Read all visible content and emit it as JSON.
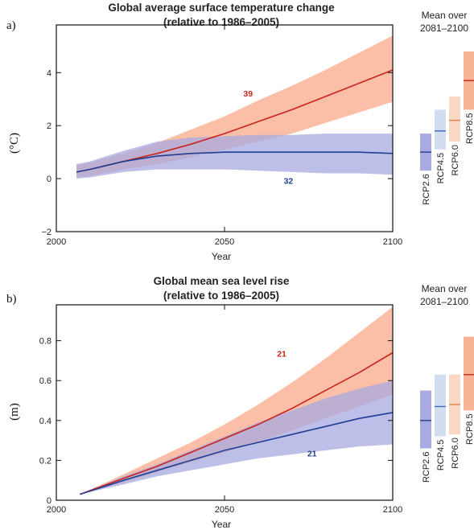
{
  "chart_data": [
    {
      "type": "area",
      "panel_letter": "a)",
      "title": "Global average surface temperature change",
      "subtitle": "(relative to 1986–2005)",
      "xlabel": "Year",
      "ylabel": "(°C)",
      "xlim": [
        2000,
        2100
      ],
      "ylim": [
        -2,
        5.8
      ],
      "xticks": [
        2000,
        2050,
        2100
      ],
      "yticks": [
        -2,
        0,
        2,
        4
      ],
      "series": [
        {
          "color": "#c8241c",
          "band_color": "#f9b497",
          "x": [
            2006,
            2010,
            2020,
            2030,
            2040,
            2050,
            2060,
            2070,
            2080,
            2090,
            2100
          ],
          "mean": [
            0.25,
            0.35,
            0.65,
            0.95,
            1.3,
            1.7,
            2.15,
            2.6,
            3.1,
            3.6,
            4.1
          ],
          "lower": [
            0.05,
            0.1,
            0.35,
            0.55,
            0.8,
            1.1,
            1.4,
            1.7,
            2.1,
            2.5,
            2.9
          ],
          "upper": [
            0.5,
            0.6,
            0.95,
            1.35,
            1.85,
            2.35,
            2.95,
            3.5,
            4.1,
            4.75,
            5.4
          ]
        },
        {
          "color": "#1f3f94",
          "band_color": "#a8aae0",
          "x": [
            2006,
            2010,
            2020,
            2030,
            2040,
            2050,
            2060,
            2070,
            2080,
            2090,
            2100
          ],
          "mean": [
            0.25,
            0.35,
            0.65,
            0.85,
            0.95,
            1.0,
            1.0,
            1.0,
            1.0,
            1.0,
            0.95
          ],
          "lower": [
            0.0,
            0.05,
            0.25,
            0.35,
            0.35,
            0.35,
            0.3,
            0.25,
            0.2,
            0.2,
            0.15
          ],
          "upper": [
            0.55,
            0.65,
            1.05,
            1.4,
            1.55,
            1.6,
            1.65,
            1.65,
            1.7,
            1.7,
            1.7
          ]
        }
      ],
      "annotations": [
        {
          "text": "39",
          "x": 2057,
          "y": 3.1,
          "color": "#c8241c"
        },
        {
          "text": "32",
          "x": 2069,
          "y": -0.2,
          "color": "#1f3f94"
        }
      ],
      "side_panel": {
        "title_lines": [
          "Mean over",
          "2081–2100"
        ],
        "bars": [
          {
            "label": "RCP2.6",
            "low": 0.3,
            "high": 1.7,
            "mean": 1.0,
            "fill": "#a8aae0",
            "line": "#1f3f94"
          },
          {
            "label": "RCP4.5",
            "low": 1.1,
            "high": 2.6,
            "mean": 1.8,
            "fill": "#d2ddf2",
            "line": "#3a6cc0"
          },
          {
            "label": "RCP6.0",
            "low": 1.4,
            "high": 3.1,
            "mean": 2.2,
            "fill": "#fbd8c4",
            "line": "#e27e4e"
          },
          {
            "label": "RCP8.5",
            "low": 2.6,
            "high": 4.8,
            "mean": 3.7,
            "fill": "#f9b497",
            "line": "#c8241c"
          }
        ]
      }
    },
    {
      "type": "area",
      "panel_letter": "b)",
      "title": "Global mean sea level rise",
      "subtitle": "(relative to 1986–2005)",
      "xlabel": "Year",
      "ylabel": "(m)",
      "xlim": [
        2000,
        2100
      ],
      "ylim": [
        0,
        0.98
      ],
      "xticks": [
        2000,
        2050,
        2100
      ],
      "yticks": [
        0,
        0.2,
        0.4,
        0.6,
        0.8
      ],
      "series": [
        {
          "color": "#c8241c",
          "band_color": "#f9b497",
          "x": [
            2007,
            2020,
            2030,
            2040,
            2050,
            2060,
            2070,
            2080,
            2090,
            2100
          ],
          "mean": [
            0.03,
            0.11,
            0.17,
            0.24,
            0.31,
            0.38,
            0.46,
            0.55,
            0.64,
            0.74
          ],
          "lower": [
            0.03,
            0.09,
            0.14,
            0.19,
            0.24,
            0.29,
            0.35,
            0.41,
            0.47,
            0.53
          ],
          "upper": [
            0.03,
            0.13,
            0.21,
            0.29,
            0.38,
            0.48,
            0.59,
            0.71,
            0.84,
            0.97
          ]
        },
        {
          "color": "#1f3f94",
          "band_color": "#a8aae0",
          "x": [
            2007,
            2020,
            2030,
            2040,
            2050,
            2060,
            2070,
            2080,
            2090,
            2100
          ],
          "mean": [
            0.03,
            0.1,
            0.15,
            0.2,
            0.25,
            0.29,
            0.33,
            0.37,
            0.41,
            0.44
          ],
          "lower": [
            0.03,
            0.08,
            0.12,
            0.15,
            0.18,
            0.21,
            0.23,
            0.25,
            0.27,
            0.28
          ],
          "upper": [
            0.03,
            0.12,
            0.18,
            0.25,
            0.32,
            0.39,
            0.45,
            0.51,
            0.56,
            0.6
          ]
        }
      ],
      "annotations": [
        {
          "text": "21",
          "x": 2067,
          "y": 0.72,
          "color": "#c8241c"
        },
        {
          "text": "21",
          "x": 2076,
          "y": 0.22,
          "color": "#1f3f94"
        }
      ],
      "side_panel": {
        "title_lines": [
          "Mean over",
          "2081–2100"
        ],
        "bars": [
          {
            "label": "RCP2.6",
            "low": 0.26,
            "high": 0.55,
            "mean": 0.4,
            "fill": "#a8aae0",
            "line": "#1f3f94"
          },
          {
            "label": "RCP4.5",
            "low": 0.32,
            "high": 0.63,
            "mean": 0.47,
            "fill": "#d2ddf2",
            "line": "#3a6cc0"
          },
          {
            "label": "RCP6.0",
            "low": 0.33,
            "high": 0.63,
            "mean": 0.48,
            "fill": "#fbd8c4",
            "line": "#e27e4e"
          },
          {
            "label": "RCP8.5",
            "low": 0.45,
            "high": 0.82,
            "mean": 0.63,
            "fill": "#f9b497",
            "line": "#c8241c"
          }
        ]
      }
    }
  ]
}
